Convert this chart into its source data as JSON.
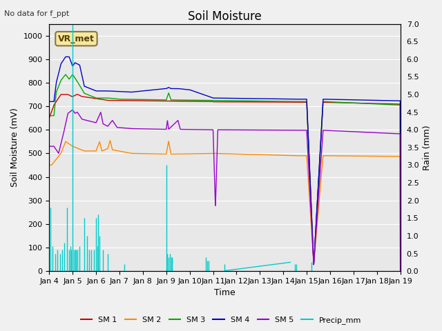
{
  "title": "Soil Moisture",
  "subtitle": "No data for f_ppt",
  "xlabel": "Time",
  "ylabel_left": "Soil Moisture (mV)",
  "ylabel_right": "Rain (mm)",
  "ylim_left": [
    0,
    1050
  ],
  "ylim_right": [
    0,
    7.0
  ],
  "yticks_left": [
    0,
    100,
    200,
    300,
    400,
    500,
    600,
    700,
    800,
    900,
    1000
  ],
  "yticks_right": [
    0.0,
    0.5,
    1.0,
    1.5,
    2.0,
    2.5,
    3.0,
    3.5,
    4.0,
    4.5,
    5.0,
    5.5,
    6.0,
    6.5,
    7.0
  ],
  "colors": {
    "SM1": "#cc0000",
    "SM2": "#ff8800",
    "SM3": "#00aa00",
    "SM4": "#0000cc",
    "SM5": "#9900cc",
    "Precip": "#00cccc"
  },
  "annotation_text": "VR_met",
  "background_color": "#e8e8e8",
  "grid_color": "#ffffff",
  "title_fontsize": 12,
  "label_fontsize": 9,
  "tick_fontsize": 8,
  "precip_spikes_t": [
    0.05,
    0.15,
    0.25,
    0.35,
    0.45,
    0.55,
    0.65,
    0.75,
    0.85,
    0.9,
    0.95,
    1.0,
    1.05,
    1.1,
    1.15,
    1.2,
    1.3,
    1.5,
    1.6,
    1.7,
    1.8,
    1.9,
    2.0,
    2.05,
    2.1,
    2.15,
    2.3,
    2.5,
    3.2,
    5.0,
    5.05,
    5.1,
    5.15,
    5.2,
    5.25,
    6.7,
    6.75,
    6.8,
    7.5,
    10.5,
    10.55,
    11.2
  ],
  "precip_spikes_v": [
    1.8,
    0.7,
    0.5,
    0.6,
    0.5,
    0.6,
    0.8,
    1.8,
    0.6,
    0.7,
    0.6,
    7.0,
    0.6,
    0.6,
    0.6,
    0.6,
    0.7,
    1.5,
    1.0,
    0.6,
    0.6,
    0.6,
    1.5,
    0.7,
    1.6,
    1.0,
    0.6,
    0.5,
    0.2,
    3.0,
    0.5,
    0.4,
    0.5,
    0.4,
    0.4,
    0.4,
    0.3,
    0.3,
    0.2,
    0.2,
    0.2,
    0.25
  ]
}
